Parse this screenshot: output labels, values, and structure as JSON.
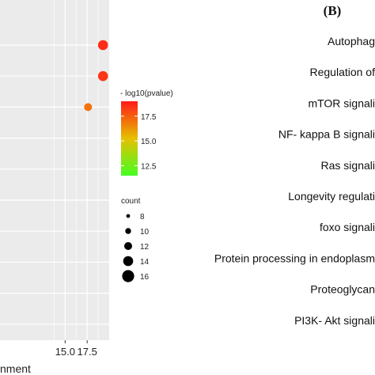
{
  "panel_b_label": "(B)",
  "chart_data": {
    "type": "scatter",
    "title": "",
    "xlabel": "nment",
    "x_ticks": [
      "15.0",
      "17.5"
    ],
    "x_tick_values": [
      15.0,
      17.5
    ],
    "xlim": [
      7.6,
      20.0
    ],
    "grid": true,
    "points": [
      {
        "x": 19.3,
        "row": 1,
        "count": 14,
        "neg_log10_pvalue": 18.6
      },
      {
        "x": 19.3,
        "row": 2,
        "count": 14,
        "neg_log10_pvalue": 18.4
      },
      {
        "x": 17.6,
        "row": 3,
        "count": 12,
        "neg_log10_pvalue": 17.0
      }
    ],
    "color_legend": {
      "title": "- log10(pvalue)",
      "ticks": [
        17.5,
        15.0,
        12.5
      ],
      "tick_labels": [
        "17.5",
        "15.0",
        "12.5"
      ],
      "range": [
        11.5,
        19.0
      ],
      "colors": {
        "high": "#ff1a1a",
        "mid": "#e6c000",
        "low": "#44ff22"
      }
    },
    "size_legend": {
      "title": "count",
      "values": [
        8,
        10,
        12,
        14,
        16
      ],
      "labels": [
        "8",
        "10",
        "12",
        "14",
        "16"
      ]
    }
  },
  "panel_b_terms": [
    "Autophag",
    "Regulation of",
    "mTOR signali",
    "NF- kappa B signali",
    "Ras signali",
    "Longevity regulati",
    "foxo signali",
    "Protein processing in endoplasm",
    "Proteoglycan",
    "PI3K- Akt signali"
  ]
}
